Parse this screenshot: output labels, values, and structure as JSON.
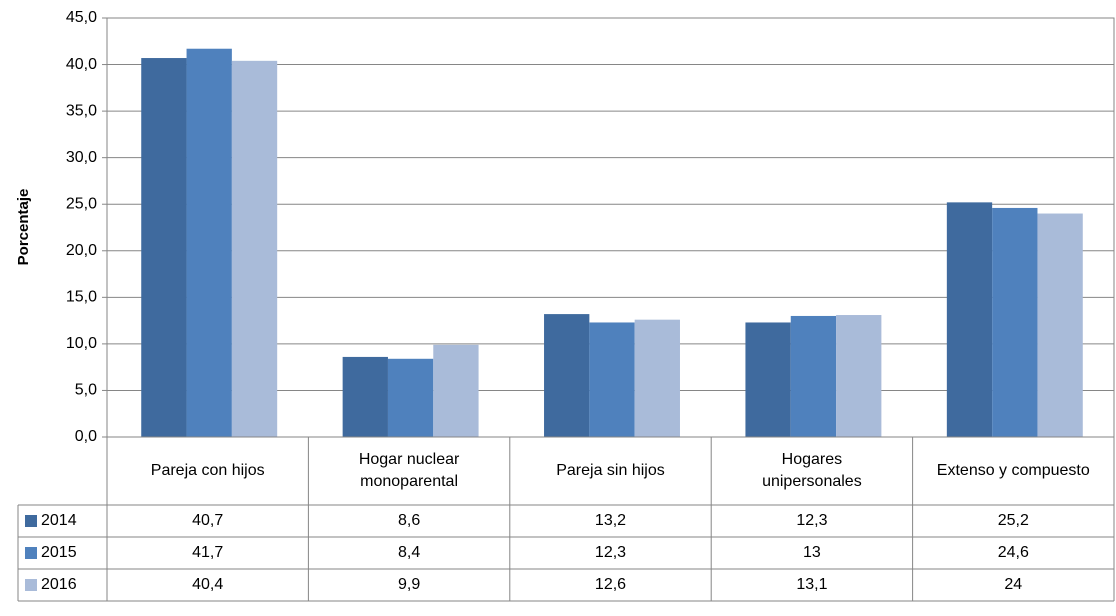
{
  "chart_data": {
    "type": "bar",
    "y_label": "Porcentaje",
    "categories": [
      "Pareja con hijos",
      "Hogar nuclear monoparental",
      "Pareja sin hijos",
      "Hogares unipersonales",
      "Extenso y compuesto"
    ],
    "series": [
      {
        "name": "2014",
        "color": "#3f6a9e",
        "values": [
          40.7,
          8.6,
          13.2,
          12.3,
          25.2
        ],
        "value_labels": [
          "40,7",
          "8,6",
          "13,2",
          "12,3",
          "25,2"
        ]
      },
      {
        "name": "2015",
        "color": "#4f81bd",
        "values": [
          41.7,
          8.4,
          12.3,
          13,
          24.6
        ],
        "value_labels": [
          "41,7",
          "8,4",
          "12,3",
          "13",
          "24,6"
        ]
      },
      {
        "name": "2016",
        "color": "#a9bbd9",
        "values": [
          40.4,
          9.9,
          12.6,
          13.1,
          24
        ],
        "value_labels": [
          "40,4",
          "9,9",
          "12,6",
          "13,1",
          "24"
        ]
      }
    ],
    "ylim": [
      0,
      45
    ],
    "yticks": [
      {
        "value": 0,
        "label": "0,0"
      },
      {
        "value": 5,
        "label": "5,0"
      },
      {
        "value": 10,
        "label": "10,0"
      },
      {
        "value": 15,
        "label": "15,0"
      },
      {
        "value": 20,
        "label": "20,0"
      },
      {
        "value": 25,
        "label": "25,0"
      },
      {
        "value": 30,
        "label": "30,0"
      },
      {
        "value": 35,
        "label": "35,0"
      },
      {
        "value": 40,
        "label": "40,0"
      },
      {
        "value": 45,
        "label": "45,0"
      }
    ],
    "grid": true
  }
}
